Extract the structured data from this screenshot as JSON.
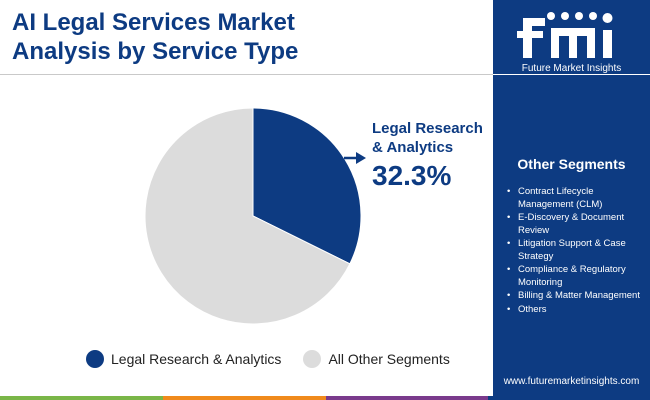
{
  "title_lines": [
    "AI Legal Services Market",
    "Analysis by Service Type"
  ],
  "colors": {
    "primary": "#0d3b82",
    "other": "#dcdcdc",
    "bar_green": "#7ab648",
    "bar_orange": "#f08a1c",
    "bar_purple": "#7a3a8c",
    "bar_navy": "#0d3b82"
  },
  "chart_data": {
    "type": "pie",
    "slices": [
      {
        "label": "Legal Research & Analytics",
        "value": 32.3,
        "color": "#0d3b82"
      },
      {
        "label": "All Other Segments",
        "value": 67.7,
        "color": "#dcdcdc"
      }
    ],
    "annotation": {
      "label": "Legal Research & Analytics",
      "value_label": "32.3%"
    },
    "legend_placement": "bottom"
  },
  "legend": [
    {
      "label": "Legal Research & Analytics",
      "color": "#0d3b82"
    },
    {
      "label": "All Other Segments",
      "color": "#dcdcdc"
    }
  ],
  "sidebar": {
    "brand": "Future Market Insights",
    "segments_title": "Other Segments",
    "segments": [
      "Contract Lifecycle Management (CLM)",
      "E-Discovery & Document Review",
      "Litigation Support & Case Strategy",
      "Compliance & Regulatory Monitoring",
      "Billing & Matter Management",
      "Others"
    ],
    "website": "www.futuremarketinsights.com"
  }
}
